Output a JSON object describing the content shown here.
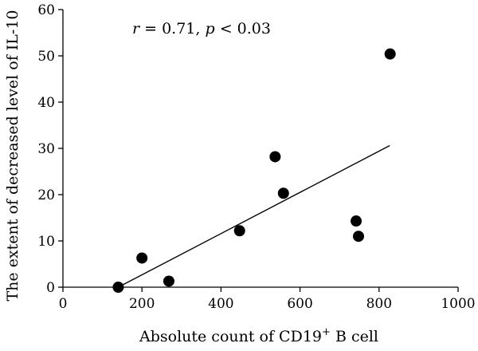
{
  "chart_data": {
    "type": "scatter",
    "xlabel": {
      "prefix": "Absolute count of CD19",
      "sup": "+",
      "suffix": " B cell"
    },
    "ylabel": "The extent of decreased level of IL-10",
    "xlim": [
      0,
      1000
    ],
    "ylim": [
      0,
      60
    ],
    "x_ticks": [
      0,
      200,
      400,
      600,
      800,
      1000
    ],
    "y_ticks": [
      0,
      10,
      20,
      30,
      40,
      50,
      60
    ],
    "points": [
      {
        "x": 140,
        "y": 0
      },
      {
        "x": 200,
        "y": 6.3
      },
      {
        "x": 268,
        "y": 1.3
      },
      {
        "x": 447,
        "y": 12.2
      },
      {
        "x": 537,
        "y": 28.2
      },
      {
        "x": 558,
        "y": 20.3
      },
      {
        "x": 742,
        "y": 14.3
      },
      {
        "x": 748,
        "y": 11.0
      },
      {
        "x": 828,
        "y": 50.4
      }
    ],
    "regression_line": {
      "x": [
        140,
        827
      ],
      "y": [
        0,
        30.6
      ]
    },
    "annotation": {
      "r_symbol": "r",
      "r_text": " = 0.71, ",
      "p_symbol": "p",
      "p_text": " < 0.03"
    },
    "grid": false,
    "legend": "none"
  }
}
